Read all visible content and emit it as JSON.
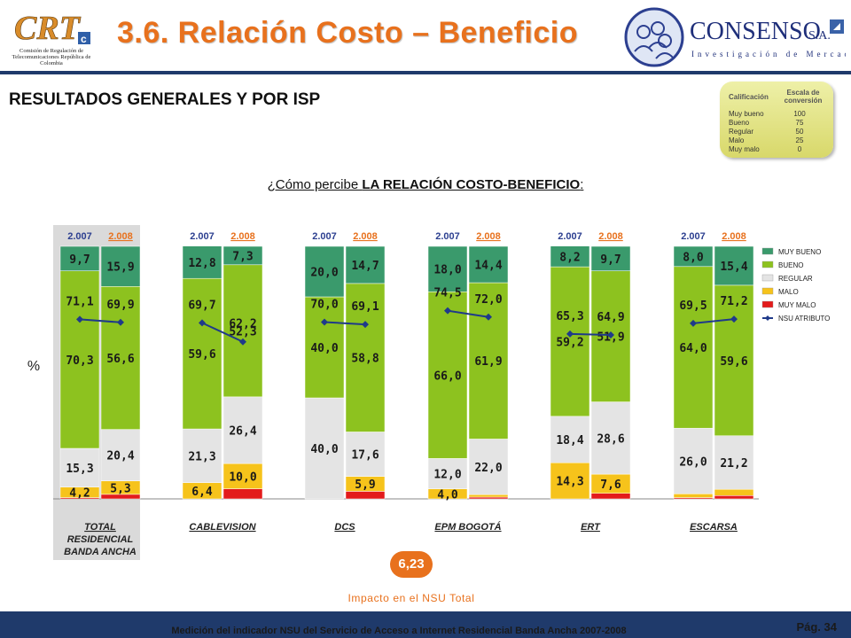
{
  "header": {
    "title": "3.6. Relación Costo – Beneficio",
    "crt_logo": {
      "mark": "CRT",
      "caption": "Comisión de Regulación de Telecomunicaciones República de Colombia"
    },
    "consenso_logo": {
      "name": "CONSENSO",
      "suffix": "S.A.",
      "tagline": "Investigación de Mercados"
    }
  },
  "subtitle": "RESULTADOS GENERALES Y POR ISP",
  "question_prefix": "¿Cómo percibe ",
  "question_bold": "LA RELACIÓN COSTO-BENEFICIO",
  "question_suffix": ":",
  "scale": {
    "header_left": "Calificación",
    "header_right": "Escala de conversión",
    "rows": [
      {
        "label": "Muy bueno",
        "value": "100"
      },
      {
        "label": "Bueno",
        "value": "75"
      },
      {
        "label": "Regular",
        "value": "50"
      },
      {
        "label": "Malo",
        "value": "25"
      },
      {
        "label": "Muy malo",
        "value": "0"
      }
    ]
  },
  "chart_data": {
    "type": "bar",
    "stacked": true,
    "ylabel": "%",
    "ylim": [
      0,
      100
    ],
    "year_labels": [
      "2.007",
      "2.008"
    ],
    "groups": [
      "TOTAL RESIDENCIAL BANDA ANCHA",
      "CABLEVISION",
      "DCS",
      "EPM BOGOTÁ",
      "ERT",
      "ESCARSA"
    ],
    "series": [
      {
        "name": "MUY BUENO",
        "color": "#3a9a6c",
        "values": [
          9.7,
          15.9,
          12.8,
          7.3,
          20.0,
          14.7,
          18.0,
          14.4,
          8.2,
          9.7,
          8.0,
          15.4
        ]
      },
      {
        "name": "BUENO",
        "color": "#8dc21f",
        "values": [
          70.3,
          56.6,
          59.6,
          52.3,
          40.0,
          58.8,
          66.0,
          61.9,
          59.2,
          51.9,
          64.0,
          59.6
        ]
      },
      {
        "name": "REGULAR",
        "color": "#e4e4e4",
        "values": [
          15.3,
          20.4,
          21.3,
          26.4,
          40.0,
          17.6,
          12.0,
          22.0,
          18.4,
          28.6,
          26.0,
          21.2
        ]
      },
      {
        "name": "MALO",
        "color": "#f6c31b",
        "values": [
          4.2,
          5.3,
          6.4,
          10.0,
          0.0,
          5.9,
          4.0,
          1.0,
          14.3,
          7.6,
          1.5,
          2.5
        ]
      },
      {
        "name": "MUY MALO",
        "color": "#e31b1b",
        "values": [
          0.5,
          1.8,
          0.0,
          4.0,
          0.0,
          3.0,
          0.0,
          0.7,
          0.0,
          2.2,
          0.5,
          1.3
        ]
      }
    ],
    "line": {
      "name": "NSU ATRIBUTO",
      "color": "#1f3a8a",
      "values": [
        71.1,
        69.9,
        69.7,
        62.2,
        70.0,
        69.1,
        74.5,
        72.0,
        65.3,
        64.9,
        69.5,
        71.2
      ]
    },
    "data_labels": [
      {
        "bar": 0,
        "labels": [
          "9,7",
          "70,3",
          "15,3",
          "4,2"
        ]
      },
      {
        "bar": 1,
        "labels": [
          "15,9",
          "56,6",
          "20,4",
          "5,3"
        ]
      },
      {
        "bar": 2,
        "labels": [
          "12,8",
          "59,6",
          "21,3",
          "6,4"
        ]
      },
      {
        "bar": 3,
        "labels": [
          "7,3",
          "52,3",
          "26,4",
          "10,0"
        ]
      },
      {
        "bar": 4,
        "labels": [
          "20,0",
          "40,0",
          "40,0",
          ""
        ]
      },
      {
        "bar": 5,
        "labels": [
          "14,7",
          "58,8",
          "17,6",
          "5,9"
        ]
      },
      {
        "bar": 6,
        "labels": [
          "18,0",
          "66,0",
          "12,0",
          "4,0"
        ]
      },
      {
        "bar": 7,
        "labels": [
          "14,4",
          "61,9",
          "22,0",
          ""
        ]
      },
      {
        "bar": 8,
        "labels": [
          "8,2",
          "59,2",
          "18,4",
          "14,3"
        ]
      },
      {
        "bar": 9,
        "labels": [
          "9,7",
          "51,9",
          "28,6",
          "7,6"
        ]
      },
      {
        "bar": 10,
        "labels": [
          "8,0",
          "64,0",
          "26,0",
          ""
        ]
      },
      {
        "bar": 11,
        "labels": [
          "15,4",
          "59,6",
          "21,2",
          ""
        ]
      }
    ],
    "line_labels": [
      "71,1",
      "69,9",
      "69,7",
      "62,2",
      "70,0",
      "69,1",
      "74,5",
      "72,0",
      "65,3",
      "64,9",
      "69,5",
      "71,2"
    ],
    "legend_position": "right"
  },
  "impact": {
    "value": "6,23",
    "label": "Impacto en el NSU Total"
  },
  "footer": {
    "text": "Medición del indicador NSU del Servicio de Acceso a Internet Residencial Banda Ancha 2007-2008",
    "page": "Pág. 34"
  },
  "colors": {
    "title": "#e8711d",
    "navy": "#1f3a6b",
    "highlight_year": "#e8711d"
  }
}
